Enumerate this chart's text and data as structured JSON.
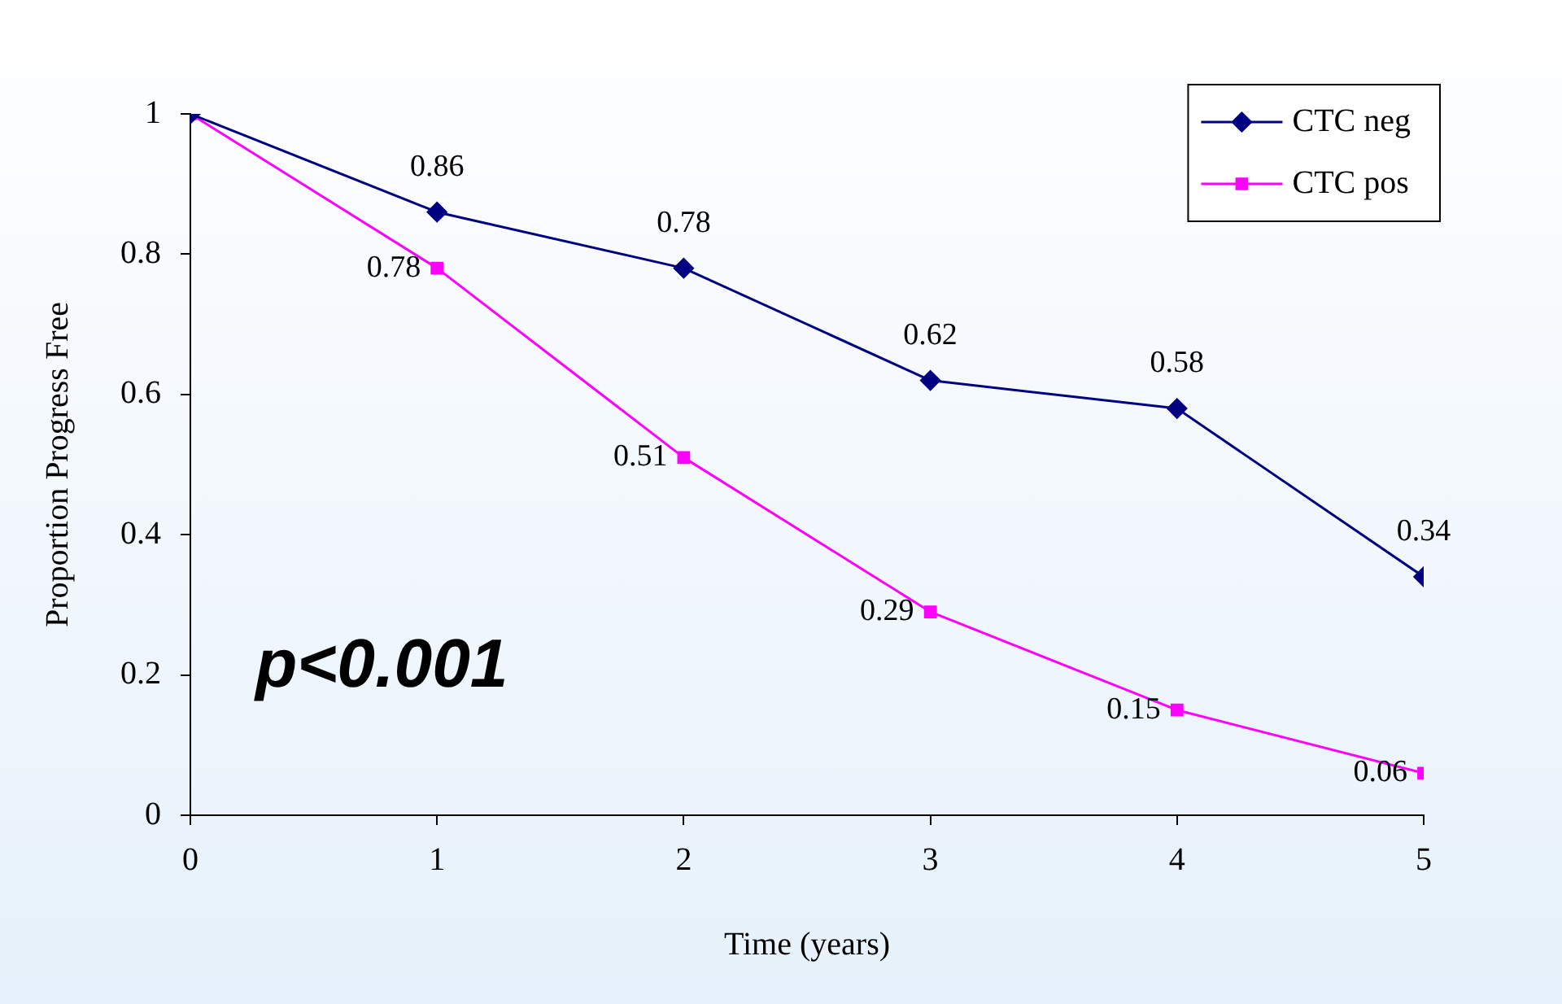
{
  "chart_data": {
    "type": "line",
    "xlabel": "Time (years)",
    "ylabel": "Proportion Progress Free",
    "x": [
      0,
      1,
      2,
      3,
      4,
      5
    ],
    "series": [
      {
        "name": "CTC neg",
        "color": "#000080",
        "marker": "diamond",
        "values": [
          1,
          0.86,
          0.78,
          0.62,
          0.58,
          0.34
        ],
        "value_labels": [
          null,
          "0.86",
          "0.78",
          "0.62",
          "0.58",
          "0.34"
        ]
      },
      {
        "name": "CTC pos",
        "color": "#ff00ff",
        "marker": "square",
        "values": [
          1,
          0.78,
          0.51,
          0.29,
          0.15,
          0.06
        ],
        "value_labels": [
          null,
          "0.78",
          "0.51",
          "0.29",
          "0.15",
          "0.06"
        ]
      }
    ],
    "xlim": [
      0,
      5
    ],
    "xticks": [
      0,
      1,
      2,
      3,
      4,
      5
    ],
    "ylim": [
      0,
      1
    ],
    "yticks": [
      0,
      0.2,
      0.4,
      0.6,
      0.8,
      1
    ],
    "grid": false,
    "legend": "top right",
    "line_style": "solid",
    "annotations": [
      "p<0.001"
    ]
  }
}
